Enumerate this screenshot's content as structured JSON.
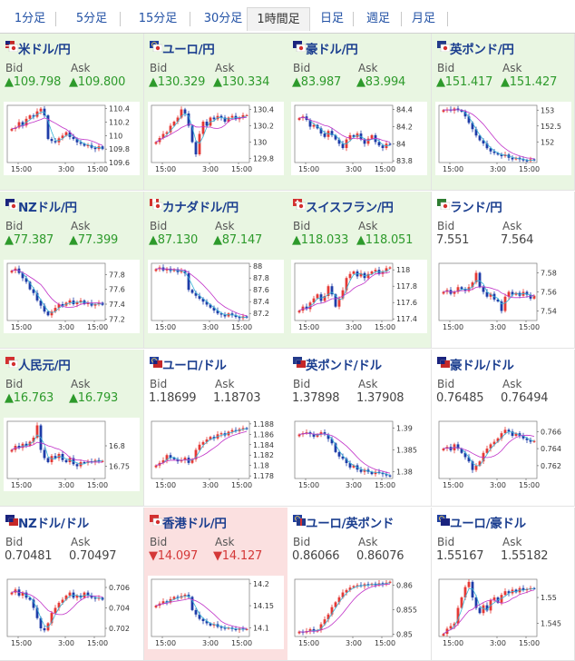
{
  "tabs": [
    {
      "label": "1分足",
      "active": false
    },
    {
      "label": "5分足",
      "active": false
    },
    {
      "label": "15分足",
      "active": false
    },
    {
      "label": "30分足",
      "active": false
    },
    {
      "label": "1時間足",
      "active": true
    },
    {
      "label": "日足",
      "active": false
    },
    {
      "label": "週足",
      "active": false
    },
    {
      "label": "月足",
      "active": false
    }
  ],
  "labels": {
    "bid": "Bid",
    "ask": "Ask"
  },
  "colors": {
    "up_bg": "#e9f6e2",
    "down_bg": "#fbe0e0",
    "up_text": "#2d9a2b",
    "down_text": "#d43838",
    "candle_up": "#e53935",
    "candle_down": "#1e3ca8",
    "ma_fast": "#36b4d6",
    "ma_slow": "#c032c8"
  },
  "pairs": [
    {
      "name": "米ドル/円",
      "dir": "up",
      "bid": "▲109.798",
      "ask": "▲109.800",
      "flag": "us-jp-flag-icon",
      "chart_data": {
        "type": "candlestick",
        "x_ticks": [
          "15:00",
          "3:00",
          "15:00"
        ],
        "y_ticks": [
          "110.4",
          "110.2",
          "110",
          "109.8",
          "109.6"
        ],
        "ylim": [
          109.6,
          110.45
        ],
        "close": [
          110.1,
          110.12,
          110.2,
          110.15,
          110.25,
          110.3,
          110.28,
          110.36,
          110.4,
          110.3,
          109.95,
          109.92,
          109.9,
          109.96,
          110.0,
          110.05,
          109.98,
          109.95,
          109.9,
          109.88,
          109.85,
          109.86,
          109.82,
          109.8,
          109.84,
          109.8
        ]
      }
    },
    {
      "name": "ユーロ/円",
      "dir": "up",
      "bid": "▲130.329",
      "ask": "▲130.334",
      "flag": "eu-jp-flag-icon",
      "chart_data": {
        "type": "candlestick",
        "x_ticks": [
          "15:00",
          "3:00",
          "15:00"
        ],
        "y_ticks": [
          "130.4",
          "130.2",
          "130",
          "129.8"
        ],
        "ylim": [
          129.75,
          130.45
        ],
        "close": [
          130.0,
          130.05,
          130.1,
          130.12,
          130.2,
          130.25,
          130.3,
          130.4,
          130.35,
          130.2,
          130.0,
          129.85,
          130.1,
          130.25,
          130.2,
          130.3,
          130.28,
          130.32,
          130.3,
          130.25,
          130.3,
          130.32,
          130.28,
          130.3,
          130.33,
          130.33
        ]
      }
    },
    {
      "name": "豪ドル/円",
      "dir": "up",
      "bid": "▲83.987",
      "ask": "▲83.994",
      "flag": "au-jp-flag-icon",
      "chart_data": {
        "type": "candlestick",
        "x_ticks": [
          "15:00",
          "3:00",
          "15:00"
        ],
        "y_ticks": [
          "84.4",
          "84.2",
          "84",
          "83.8"
        ],
        "ylim": [
          83.78,
          84.45
        ],
        "close": [
          84.3,
          84.32,
          84.28,
          84.2,
          84.22,
          84.18,
          84.12,
          84.08,
          84.15,
          84.1,
          84.05,
          84.0,
          83.95,
          84.05,
          84.1,
          84.08,
          84.12,
          84.05,
          84.0,
          84.06,
          84.1,
          84.02,
          83.98,
          83.95,
          84.0,
          83.99
        ]
      }
    },
    {
      "name": "英ポンド/円",
      "dir": "up",
      "bid": "▲151.417",
      "ask": "▲151.427",
      "flag": "gb-jp-flag-icon",
      "chart_data": {
        "type": "candlestick",
        "x_ticks": [
          "15:00",
          "3:00",
          "15:00"
        ],
        "y_ticks": [
          "153",
          "152.5",
          "152"
        ],
        "ylim": [
          151.35,
          153.15
        ],
        "close": [
          153.0,
          153.02,
          152.98,
          153.05,
          153.0,
          152.95,
          152.8,
          152.6,
          152.4,
          152.2,
          152.05,
          151.95,
          151.8,
          151.7,
          151.65,
          151.6,
          151.55,
          151.6,
          151.5,
          151.45,
          151.5,
          151.45,
          151.42,
          151.4,
          151.45,
          151.42
        ]
      }
    },
    {
      "name": "NZドル/円",
      "dir": "up",
      "bid": "▲77.387",
      "ask": "▲77.399",
      "flag": "nz-jp-flag-icon",
      "chart_data": {
        "type": "candlestick",
        "x_ticks": [
          "15:00",
          "3:00",
          "15:00"
        ],
        "y_ticks": [
          "77.8",
          "77.6",
          "77.4",
          "77.2"
        ],
        "ylim": [
          77.18,
          77.95
        ],
        "close": [
          77.85,
          77.88,
          77.82,
          77.75,
          77.7,
          77.6,
          77.55,
          77.45,
          77.38,
          77.3,
          77.25,
          77.3,
          77.35,
          77.4,
          77.38,
          77.42,
          77.45,
          77.4,
          77.43,
          77.45,
          77.4,
          77.42,
          77.38,
          77.4,
          77.42,
          77.39
        ]
      }
    },
    {
      "name": "カナダドル/円",
      "dir": "up",
      "bid": "▲87.130",
      "ask": "▲87.147",
      "flag": "ca-jp-flag-icon",
      "chart_data": {
        "type": "candlestick",
        "x_ticks": [
          "15:00",
          "3:00",
          "15:00"
        ],
        "y_ticks": [
          "88",
          "87.8",
          "87.6",
          "87.4",
          "87.2"
        ],
        "ylim": [
          87.08,
          88.05
        ],
        "close": [
          87.95,
          87.98,
          87.93,
          87.96,
          87.92,
          87.95,
          87.9,
          87.92,
          87.88,
          87.6,
          87.55,
          87.5,
          87.45,
          87.4,
          87.35,
          87.3,
          87.25,
          87.2,
          87.18,
          87.15,
          87.2,
          87.17,
          87.14,
          87.12,
          87.15,
          87.13
        ]
      }
    },
    {
      "name": "スイスフラン/円",
      "dir": "up",
      "bid": "▲118.033",
      "ask": "▲118.051",
      "flag": "ch-jp-flag-icon",
      "chart_data": {
        "type": "candlestick",
        "x_ticks": [
          "15:00",
          "3:00",
          "15:00"
        ],
        "y_ticks": [
          "118",
          "117.8",
          "117.6",
          "117.4"
        ],
        "ylim": [
          117.38,
          118.08
        ],
        "close": [
          117.5,
          117.55,
          117.52,
          117.6,
          117.65,
          117.7,
          117.62,
          117.68,
          117.8,
          117.7,
          117.55,
          117.65,
          117.75,
          117.9,
          117.95,
          117.98,
          117.92,
          117.96,
          117.9,
          117.95,
          117.98,
          118.0,
          117.95,
          117.98,
          118.02,
          118.03
        ]
      }
    },
    {
      "name": "ランド/円",
      "dir": "flat",
      "bid": "7.551",
      "ask": "7.564",
      "flag": "za-jp-flag-icon",
      "chart_data": {
        "type": "candlestick",
        "x_ticks": [
          "15:00",
          "3:00",
          "15:00"
        ],
        "y_ticks": [
          "7.58",
          "7.56",
          "7.54"
        ],
        "ylim": [
          7.53,
          7.59
        ],
        "close": [
          7.56,
          7.562,
          7.558,
          7.56,
          7.565,
          7.563,
          7.561,
          7.565,
          7.57,
          7.58,
          7.565,
          7.56,
          7.555,
          7.558,
          7.552,
          7.55,
          7.54,
          7.555,
          7.56,
          7.557,
          7.559,
          7.556,
          7.56,
          7.557,
          7.553,
          7.556
        ]
      }
    },
    {
      "name": "人民元/円",
      "dir": "up",
      "bid": "▲16.763",
      "ask": "▲16.793",
      "flag": "cn-jp-flag-icon",
      "chart_data": {
        "type": "candlestick",
        "x_ticks": [
          "15:00",
          "3:00",
          "15:00"
        ],
        "y_ticks": [
          "16.8",
          "16.75"
        ],
        "ylim": [
          16.72,
          16.86
        ],
        "close": [
          16.79,
          16.8,
          16.795,
          16.805,
          16.8,
          16.81,
          16.82,
          16.85,
          16.79,
          16.77,
          16.76,
          16.775,
          16.77,
          16.78,
          16.765,
          16.76,
          16.77,
          16.755,
          16.75,
          16.76,
          16.758,
          16.762,
          16.76,
          16.765,
          16.762,
          16.763
        ]
      }
    },
    {
      "name": "ユーロ/ドル",
      "dir": "flat",
      "bid": "1.18699",
      "ask": "1.18703",
      "flag": "eu-us-flag-icon",
      "chart_data": {
        "type": "candlestick",
        "x_ticks": [
          "15:00",
          "3:00",
          "15:00"
        ],
        "y_ticks": [
          "1.188",
          "1.186",
          "1.184",
          "1.182",
          "1.18",
          "1.178"
        ],
        "ylim": [
          1.1775,
          1.1885
        ],
        "close": [
          1.18,
          1.1805,
          1.181,
          1.182,
          1.1815,
          1.1812,
          1.1808,
          1.181,
          1.1815,
          1.1805,
          1.1812,
          1.183,
          1.184,
          1.1845,
          1.185,
          1.1855,
          1.1852,
          1.186,
          1.1862,
          1.1858,
          1.1865,
          1.1868,
          1.1866,
          1.187,
          1.1872,
          1.187
        ]
      }
    },
    {
      "name": "英ポンド/ドル",
      "dir": "flat",
      "bid": "1.37898",
      "ask": "1.37908",
      "flag": "gb-us-flag-icon",
      "chart_data": {
        "type": "candlestick",
        "x_ticks": [
          "15:00",
          "3:00",
          "15:00"
        ],
        "y_ticks": [
          "1.39",
          "1.385",
          "1.38"
        ],
        "ylim": [
          1.3785,
          1.3915
        ],
        "close": [
          1.3885,
          1.3888,
          1.389,
          1.3886,
          1.388,
          1.3885,
          1.389,
          1.3885,
          1.3875,
          1.3865,
          1.3845,
          1.3835,
          1.383,
          1.382,
          1.381,
          1.3815,
          1.3805,
          1.38,
          1.3805,
          1.38,
          1.3795,
          1.38,
          1.3798,
          1.3795,
          1.3792,
          1.379
        ]
      }
    },
    {
      "name": "豪ドル/ドル",
      "dir": "flat",
      "bid": "0.76485",
      "ask": "0.76494",
      "flag": "au-us-flag-icon",
      "chart_data": {
        "type": "candlestick",
        "x_ticks": [
          "15:00",
          "3:00",
          "15:00"
        ],
        "y_ticks": [
          "0.766",
          "0.764",
          "0.762"
        ],
        "ylim": [
          0.7605,
          0.7672
        ],
        "close": [
          0.764,
          0.7642,
          0.7638,
          0.7645,
          0.764,
          0.7635,
          0.763,
          0.7625,
          0.7615,
          0.762,
          0.7625,
          0.7635,
          0.764,
          0.7645,
          0.7648,
          0.7652,
          0.7658,
          0.7662,
          0.766,
          0.7655,
          0.7658,
          0.7655,
          0.7652,
          0.765,
          0.7648,
          0.7649
        ]
      }
    },
    {
      "name": "NZドル/ドル",
      "dir": "flat",
      "bid": "0.70481",
      "ask": "0.70497",
      "flag": "nz-us-flag-icon",
      "chart_data": {
        "type": "candlestick",
        "x_ticks": [
          "15:00",
          "3:00",
          "15:00"
        ],
        "y_ticks": [
          "0.706",
          "0.704",
          "0.702"
        ],
        "ylim": [
          0.7012,
          0.7068
        ],
        "close": [
          0.7055,
          0.7058,
          0.7052,
          0.7055,
          0.705,
          0.7048,
          0.704,
          0.703,
          0.702,
          0.7018,
          0.7025,
          0.7035,
          0.704,
          0.7045,
          0.7048,
          0.7052,
          0.7055,
          0.705,
          0.7052,
          0.705,
          0.7055,
          0.7052,
          0.705,
          0.7049,
          0.705,
          0.7048
        ]
      }
    },
    {
      "name": "香港ドル/円",
      "dir": "down",
      "bid": "▼14.097",
      "ask": "▼14.127",
      "flag": "hk-jp-flag-icon",
      "chart_data": {
        "type": "candlestick",
        "x_ticks": [
          "15:00",
          "3:00",
          "15:00"
        ],
        "y_ticks": [
          "14.2",
          "14.15",
          "14.1"
        ],
        "ylim": [
          14.08,
          14.21
        ],
        "close": [
          14.15,
          14.155,
          14.16,
          14.158,
          14.165,
          14.17,
          14.168,
          14.172,
          14.175,
          14.17,
          14.14,
          14.13,
          14.12,
          14.115,
          14.11,
          14.105,
          14.108,
          14.102,
          14.1,
          14.098,
          14.1,
          14.097,
          14.095,
          14.098,
          14.096,
          14.097
        ]
      }
    },
    {
      "name": "ユーロ/英ポンド",
      "dir": "flat",
      "bid": "0.86066",
      "ask": "0.86076",
      "flag": "eu-gb-flag-icon",
      "chart_data": {
        "type": "candlestick",
        "x_ticks": [
          "15:00",
          "3:00",
          "15:00"
        ],
        "y_ticks": [
          "0.86",
          "0.855",
          "0.85"
        ],
        "ylim": [
          0.8495,
          0.8612
        ],
        "close": [
          0.8505,
          0.8503,
          0.8506,
          0.851,
          0.8505,
          0.8508,
          0.852,
          0.853,
          0.854,
          0.8555,
          0.8565,
          0.8575,
          0.8585,
          0.859,
          0.8595,
          0.8598,
          0.86,
          0.8598,
          0.8602,
          0.86,
          0.8603,
          0.86,
          0.8604,
          0.8602,
          0.8605,
          0.8607
        ]
      }
    },
    {
      "name": "ユーロ/豪ドル",
      "dir": "flat",
      "bid": "1.55167",
      "ask": "1.55182",
      "flag": "eu-au-flag-icon",
      "chart_data": {
        "type": "candlestick",
        "x_ticks": [
          "15:00",
          "3:00",
          "15:00"
        ],
        "y_ticks": [
          "1.55",
          "1.545"
        ],
        "ylim": [
          1.5425,
          1.5535
        ],
        "close": [
          1.543,
          1.544,
          1.5445,
          1.545,
          1.548,
          1.55,
          1.552,
          1.553,
          1.55,
          1.548,
          1.547,
          1.5485,
          1.5475,
          1.5495,
          1.55,
          1.549,
          1.5505,
          1.5512,
          1.5508,
          1.5515,
          1.551,
          1.5518,
          1.5514,
          1.5516,
          1.5518,
          1.5517
        ]
      }
    }
  ]
}
